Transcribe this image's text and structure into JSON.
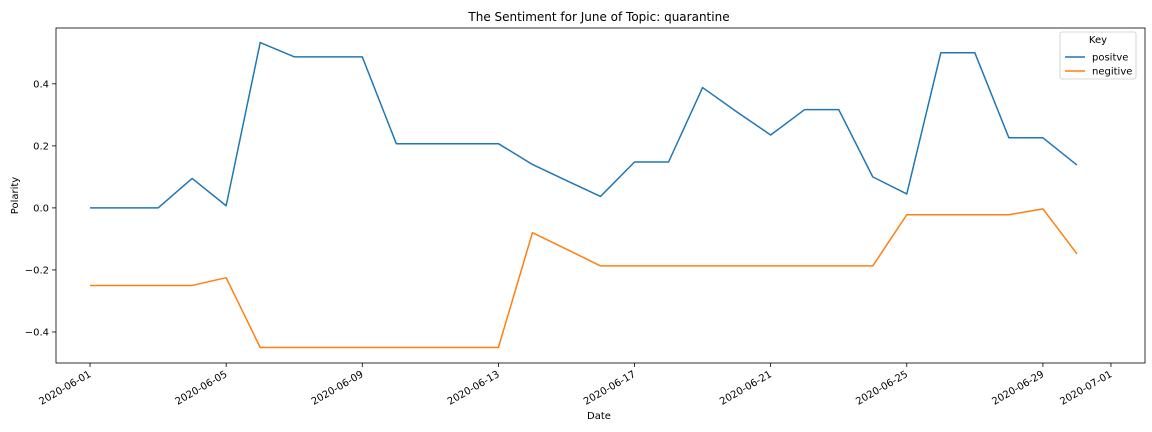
{
  "chart_data": {
    "type": "line",
    "title": "The Sentiment for June of Topic: quarantine",
    "xlabel": "Date",
    "ylabel": "Polarity",
    "x": [
      "2020-06-01",
      "2020-06-02",
      "2020-06-03",
      "2020-06-04",
      "2020-06-05",
      "2020-06-06",
      "2020-06-07",
      "2020-06-08",
      "2020-06-09",
      "2020-06-10",
      "2020-06-11",
      "2020-06-12",
      "2020-06-13",
      "2020-06-14",
      "2020-06-15",
      "2020-06-16",
      "2020-06-17",
      "2020-06-18",
      "2020-06-19",
      "2020-06-20",
      "2020-06-21",
      "2020-06-22",
      "2020-06-23",
      "2020-06-24",
      "2020-06-25",
      "2020-06-26",
      "2020-06-27",
      "2020-06-28",
      "2020-06-29",
      "2020-06-30"
    ],
    "xlim": [
      "2020-05-31",
      "2020-07-02"
    ],
    "ylim": [
      -0.5,
      0.58
    ],
    "xticks": [
      "2020-06-01",
      "2020-06-05",
      "2020-06-09",
      "2020-06-13",
      "2020-06-17",
      "2020-06-21",
      "2020-06-25",
      "2020-06-29",
      "2020-07-01"
    ],
    "yticks": [
      -0.4,
      -0.2,
      0.0,
      0.2,
      0.4
    ],
    "ytick_labels": [
      "−0.4",
      "−0.2",
      "0.0",
      "0.2",
      "0.4"
    ],
    "grid": false,
    "legend": {
      "title": "Key",
      "placement": "top-right"
    },
    "series": [
      {
        "name": "positve",
        "color": "#1f77b4",
        "values": [
          0.0,
          0.0,
          0.0,
          0.095,
          0.007,
          0.533,
          0.487,
          0.487,
          0.487,
          0.207,
          0.207,
          0.207,
          0.207,
          0.14,
          0.088,
          0.037,
          0.148,
          0.148,
          0.388,
          0.31,
          0.235,
          0.317,
          0.317,
          0.1,
          0.045,
          0.5,
          0.5,
          0.226,
          0.226,
          0.138
        ]
      },
      {
        "name": "negitive",
        "color": "#ff7f0e",
        "values": [
          -0.25,
          -0.25,
          -0.25,
          -0.25,
          -0.225,
          -0.45,
          -0.45,
          -0.45,
          -0.45,
          -0.45,
          -0.45,
          -0.45,
          -0.45,
          -0.08,
          -0.133,
          -0.187,
          -0.187,
          -0.187,
          -0.187,
          -0.187,
          -0.187,
          -0.187,
          -0.187,
          -0.187,
          -0.022,
          -0.022,
          -0.022,
          -0.022,
          -0.003,
          -0.148
        ]
      }
    ]
  }
}
